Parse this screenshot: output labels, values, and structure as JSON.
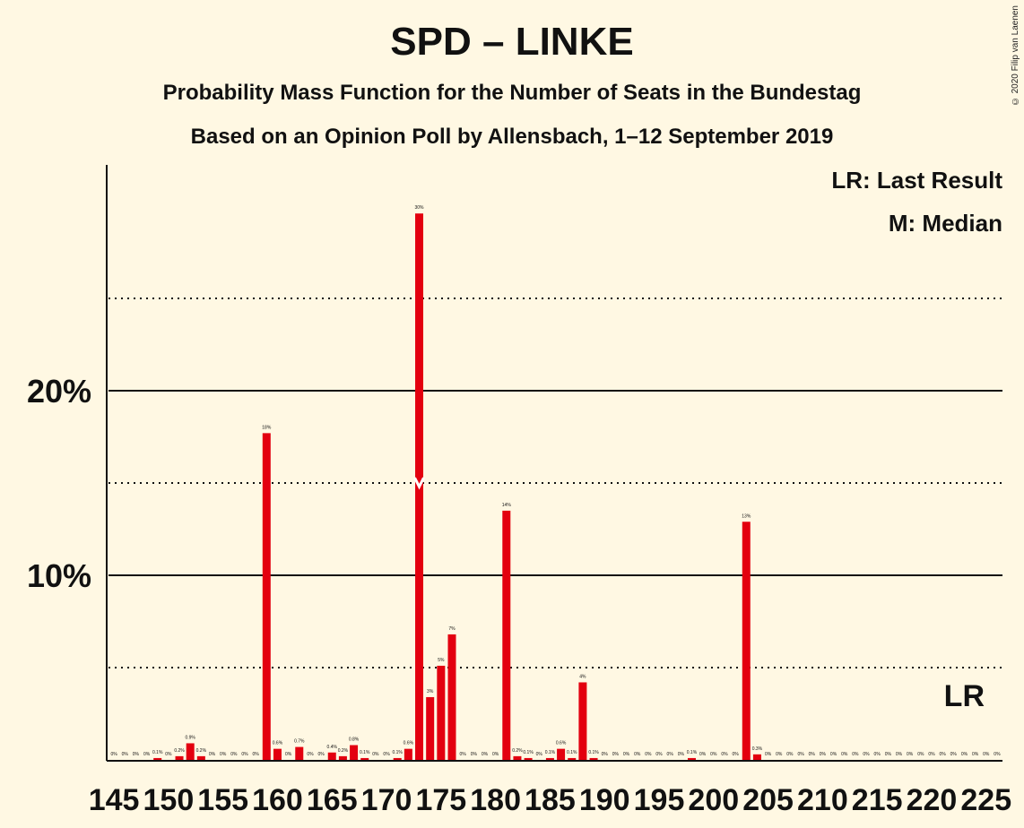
{
  "title": "SPD – LINKE",
  "subtitle_1": "Probability Mass Function for the Number of Seats in the Bundestag",
  "subtitle_2": "Based on an Opinion Poll by Allensbach, 1–12 September 2019",
  "copyright": "© 2020 Filip van Laenen",
  "legend": {
    "last_result": "LR: Last Result",
    "median": "M: Median"
  },
  "colors": {
    "bar": "#E3000F",
    "background": "#FFF8E3",
    "text": "#111111"
  },
  "chart_data": {
    "type": "bar",
    "x_start": 145,
    "x_end": 226,
    "x_tick_labels": [
      "145",
      "150",
      "155",
      "160",
      "165",
      "170",
      "175",
      "180",
      "185",
      "190",
      "195",
      "200",
      "205",
      "210",
      "215",
      "220",
      "225"
    ],
    "values": [
      0,
      0,
      0,
      0,
      0.1,
      0,
      0.2,
      0.9,
      0.2,
      0,
      0,
      0,
      0,
      0,
      18,
      0.6,
      0,
      0.7,
      0,
      0,
      0.4,
      0.2,
      0.8,
      0.1,
      0,
      0,
      0.1,
      0.6,
      30,
      3,
      5,
      7,
      0,
      0,
      0,
      0,
      14,
      0.2,
      0.1,
      0,
      0.1,
      0.6,
      0.1,
      4,
      0.1,
      0,
      0,
      0,
      0,
      0,
      0,
      0,
      0,
      0.1,
      0,
      0,
      0,
      0,
      13,
      0.3,
      0,
      0,
      0,
      0,
      0,
      0,
      0,
      0,
      0,
      0,
      0,
      0,
      0,
      0,
      0,
      0,
      0,
      0,
      0,
      0,
      0,
      0
    ],
    "value_labels": [
      "0%",
      "0%",
      "0%",
      "0%",
      "0.1%",
      "0%",
      "0.2%",
      "0.9%",
      "0.2%",
      "0%",
      "0%",
      "0%",
      "0%",
      "0%",
      "18%",
      "0.6%",
      "0%",
      "0.7%",
      "0%",
      "0%",
      "0.4%",
      "0.2%",
      "0.8%",
      "0.1%",
      "0%",
      "0%",
      "0.1%",
      "0.6%",
      "30%",
      "3%",
      "5%",
      "7%",
      "0%",
      "0%",
      "0%",
      "0%",
      "14%",
      "0.2%",
      "0.1%",
      "0%",
      "0.1%",
      "0.6%",
      "0.1%",
      "4%",
      "0.1%",
      "0%",
      "0%",
      "0%",
      "0%",
      "0%",
      "0%",
      "0%",
      "0%",
      "0.1%",
      "0%",
      "0%",
      "0%",
      "0%",
      "13%",
      "0.3%",
      "0%",
      "0%",
      "0%",
      "0%",
      "0%",
      "0%",
      "0%",
      "0%",
      "0%",
      "0%",
      "0%",
      "0%",
      "0%",
      "0%",
      "0%",
      "0%",
      "0%",
      "0%",
      "0%",
      "0%",
      "0%",
      "0%"
    ],
    "heights_pct": [
      0,
      0,
      0,
      0,
      0.1,
      0,
      0.2,
      0.9,
      0.2,
      0,
      0,
      0,
      0,
      0,
      17.7,
      0.6,
      0,
      0.7,
      0,
      0,
      0.4,
      0.2,
      0.8,
      0.1,
      0,
      0,
      0.1,
      0.6,
      29.6,
      3.4,
      5.1,
      6.8,
      0,
      0,
      0,
      0,
      13.5,
      0.2,
      0.1,
      0,
      0.1,
      0.6,
      0.1,
      4.2,
      0.1,
      0,
      0,
      0,
      0,
      0,
      0,
      0,
      0,
      0.1,
      0,
      0,
      0,
      0,
      12.9,
      0.3,
      0,
      0,
      0,
      0,
      0,
      0,
      0,
      0,
      0,
      0,
      0,
      0,
      0,
      0,
      0,
      0,
      0,
      0,
      0,
      0,
      0,
      0
    ],
    "y_axis_labels": [
      {
        "value": 10,
        "label": "10%"
      },
      {
        "value": 20,
        "label": "20%"
      }
    ],
    "y_gridlines_major": [
      10,
      20
    ],
    "y_gridlines_minor": [
      5,
      15,
      25
    ],
    "ylim": [
      0,
      32
    ],
    "median_seat": 173,
    "last_result_label": "LR"
  }
}
